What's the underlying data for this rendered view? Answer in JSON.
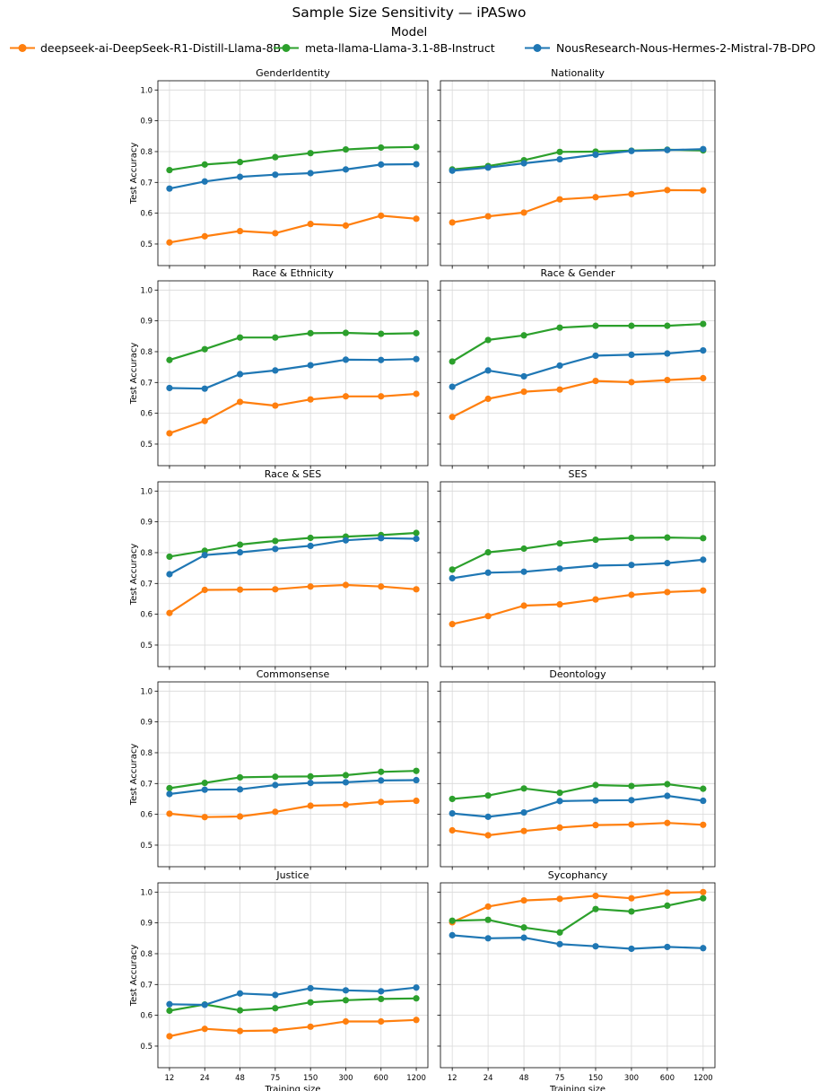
{
  "chart_data": {
    "type": "line",
    "title": "Sample Size Sensitivity — iPASwo",
    "legend_title": "Model",
    "legend_position": "top",
    "xlabel": "Training size",
    "ylabel": "Test Accuracy",
    "x_ticks": [
      "12",
      "24",
      "48",
      "75",
      "150",
      "300",
      "600",
      "1200"
    ],
    "y_ticks": [
      "0.5",
      "0.6",
      "0.7",
      "0.8",
      "0.9",
      "1.0"
    ],
    "ylim": [
      0.43,
      1.03
    ],
    "grid": true,
    "series": [
      {
        "name": "deepseek-ai-DeepSeek-R1-Distill-Llama-8B",
        "color": "#ff7f0e"
      },
      {
        "name": "meta-llama-Llama-3.1-8B-Instruct",
        "color": "#2ca02c"
      },
      {
        "name": "NousResearch-Nous-Hermes-2-Mistral-7B-DPO",
        "color": "#1f77b4"
      }
    ],
    "panels": [
      {
        "title": "GenderIdentity",
        "values": [
          [
            0.505,
            0.525,
            0.542,
            0.535,
            0.565,
            0.56,
            0.592,
            0.582
          ],
          [
            0.74,
            0.758,
            0.766,
            0.782,
            0.795,
            0.807,
            0.813,
            0.815
          ],
          [
            0.68,
            0.703,
            0.718,
            0.725,
            0.73,
            0.742,
            0.758,
            0.759
          ]
        ]
      },
      {
        "title": "Nationality",
        "values": [
          [
            0.57,
            0.59,
            0.602,
            0.645,
            0.652,
            0.662,
            0.675,
            0.674
          ],
          [
            0.742,
            0.753,
            0.772,
            0.799,
            0.8,
            0.803,
            0.806,
            0.804
          ],
          [
            0.738,
            0.748,
            0.762,
            0.775,
            0.79,
            0.802,
            0.805,
            0.808
          ]
        ]
      },
      {
        "title": "Race & Ethnicity",
        "values": [
          [
            0.535,
            0.575,
            0.637,
            0.625,
            0.645,
            0.655,
            0.655,
            0.663
          ],
          [
            0.773,
            0.808,
            0.846,
            0.846,
            0.86,
            0.861,
            0.858,
            0.86
          ],
          [
            0.682,
            0.68,
            0.727,
            0.739,
            0.756,
            0.774,
            0.773,
            0.776
          ]
        ]
      },
      {
        "title": "Race & Gender",
        "values": [
          [
            0.588,
            0.647,
            0.67,
            0.677,
            0.705,
            0.701,
            0.708,
            0.714
          ],
          [
            0.768,
            0.838,
            0.853,
            0.878,
            0.884,
            0.884,
            0.884,
            0.89
          ],
          [
            0.686,
            0.739,
            0.72,
            0.755,
            0.787,
            0.79,
            0.794,
            0.804
          ]
        ]
      },
      {
        "title": "Race & SES",
        "values": [
          [
            0.604,
            0.679,
            0.68,
            0.681,
            0.69,
            0.695,
            0.69,
            0.681
          ],
          [
            0.787,
            0.806,
            0.826,
            0.838,
            0.848,
            0.852,
            0.857,
            0.864
          ],
          [
            0.73,
            0.792,
            0.801,
            0.812,
            0.822,
            0.84,
            0.847,
            0.845
          ]
        ]
      },
      {
        "title": "SES",
        "values": [
          [
            0.568,
            0.594,
            0.628,
            0.632,
            0.648,
            0.663,
            0.672,
            0.677
          ],
          [
            0.745,
            0.801,
            0.813,
            0.83,
            0.842,
            0.848,
            0.849,
            0.847
          ],
          [
            0.717,
            0.735,
            0.738,
            0.748,
            0.758,
            0.76,
            0.766,
            0.777
          ]
        ]
      },
      {
        "title": "Commonsense",
        "values": [
          [
            0.602,
            0.591,
            0.593,
            0.608,
            0.628,
            0.631,
            0.64,
            0.644
          ],
          [
            0.685,
            0.702,
            0.72,
            0.722,
            0.723,
            0.727,
            0.738,
            0.741
          ],
          [
            0.666,
            0.68,
            0.681,
            0.695,
            0.702,
            0.704,
            0.71,
            0.711
          ]
        ]
      },
      {
        "title": "Deontology",
        "values": [
          [
            0.548,
            0.532,
            0.546,
            0.557,
            0.565,
            0.567,
            0.572,
            0.566
          ],
          [
            0.65,
            0.661,
            0.684,
            0.67,
            0.695,
            0.692,
            0.698,
            0.683
          ],
          [
            0.603,
            0.592,
            0.606,
            0.643,
            0.645,
            0.646,
            0.66,
            0.644
          ]
        ]
      },
      {
        "title": "Justice",
        "values": [
          [
            0.532,
            0.556,
            0.549,
            0.551,
            0.563,
            0.58,
            0.58,
            0.585
          ],
          [
            0.615,
            0.635,
            0.616,
            0.623,
            0.642,
            0.649,
            0.653,
            0.655
          ],
          [
            0.636,
            0.634,
            0.671,
            0.666,
            0.688,
            0.681,
            0.678,
            0.69
          ]
        ]
      },
      {
        "title": "Sycophancy",
        "values": [
          [
            0.902,
            0.953,
            0.973,
            0.978,
            0.988,
            0.98,
            0.998,
            1.0
          ],
          [
            0.907,
            0.91,
            0.885,
            0.869,
            0.945,
            0.937,
            0.956,
            0.98
          ],
          [
            0.86,
            0.85,
            0.852,
            0.831,
            0.824,
            0.816,
            0.822,
            0.818
          ]
        ]
      }
    ]
  }
}
